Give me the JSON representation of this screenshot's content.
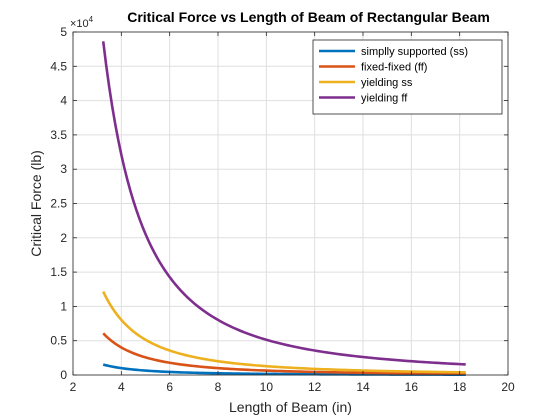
{
  "chart_data": {
    "type": "line",
    "title": "Critical Force vs Length of Beam of Rectangular Beam",
    "xlabel": "Length of Beam (in)",
    "ylabel": "Critical Force (lb)",
    "xlim": [
      2,
      20
    ],
    "ylim": [
      0,
      5
    ],
    "y_multiplier_label": "×10",
    "y_multiplier_exponent": "4",
    "x_ticks": [
      "2",
      "4",
      "6",
      "8",
      "10",
      "12",
      "14",
      "16",
      "18",
      "20"
    ],
    "y_ticks": [
      "0",
      "0.5",
      "1",
      "1.5",
      "2",
      "2.5",
      "3",
      "3.5",
      "4",
      "4.5",
      "5"
    ],
    "grid": true,
    "legend_position": "top-right",
    "series": [
      {
        "name": "simplly supported (ss)",
        "color": "#0072BD",
        "x": [
          3.25,
          3.5,
          4,
          4.5,
          5,
          5.5,
          6,
          7,
          8,
          9,
          10,
          11,
          12,
          13,
          14,
          15,
          16,
          17,
          18.25
        ],
        "y": [
          0.152,
          0.131,
          0.1003,
          0.0793,
          0.0642,
          0.0531,
          0.0446,
          0.0328,
          0.0251,
          0.0198,
          0.0161,
          0.0133,
          0.0111,
          0.0095,
          0.0082,
          0.0071,
          0.0063,
          0.0056,
          0.0048
        ]
      },
      {
        "name": "fixed-fixed (ff)",
        "color": "#D95319",
        "x": [
          3.25,
          3.5,
          4,
          4.5,
          5,
          5.5,
          6,
          7,
          8,
          9,
          10,
          11,
          12,
          13,
          14,
          15,
          16,
          17,
          18.25
        ],
        "y": [
          0.608,
          0.524,
          0.401,
          0.317,
          0.257,
          0.212,
          0.178,
          0.131,
          0.1003,
          0.0793,
          0.0642,
          0.0531,
          0.0446,
          0.038,
          0.0328,
          0.0285,
          0.0251,
          0.0222,
          0.0193
        ]
      },
      {
        "name": "yielding ss",
        "color": "#EDB120",
        "x": [
          3.25,
          3.5,
          4,
          4.5,
          5,
          5.5,
          6,
          7,
          8,
          9,
          10,
          11,
          12,
          13,
          14,
          15,
          16,
          17,
          18.25
        ],
        "y": [
          1.216,
          1.049,
          0.803,
          0.634,
          0.514,
          0.425,
          0.357,
          0.262,
          0.2007,
          0.1586,
          0.1285,
          0.1062,
          0.0892,
          0.076,
          0.0655,
          0.0571,
          0.0502,
          0.0444,
          0.0385
        ]
      },
      {
        "name": "yielding ff",
        "color": "#7E2F8E",
        "x": [
          3.25,
          3.5,
          4,
          4.5,
          5,
          5.5,
          6,
          7,
          8,
          9,
          10,
          11,
          12,
          13,
          14,
          15,
          16,
          17,
          18.25
        ],
        "y": [
          4.864,
          4.194,
          3.211,
          2.537,
          2.055,
          1.699,
          1.427,
          1.049,
          0.803,
          0.634,
          0.514,
          0.425,
          0.357,
          0.304,
          0.262,
          0.228,
          0.2007,
          0.1778,
          0.1543
        ]
      }
    ]
  }
}
